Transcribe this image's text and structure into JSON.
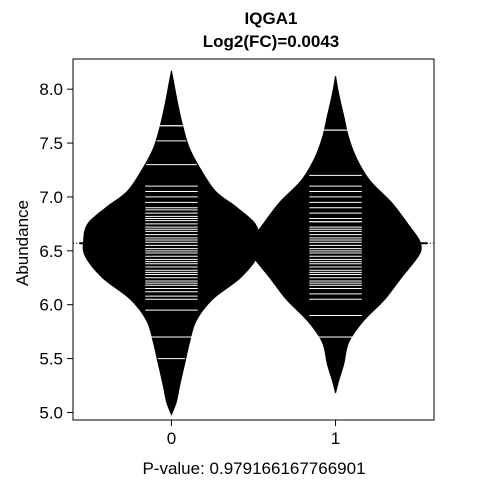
{
  "chart_data": {
    "type": "beanplot",
    "title": "IQGA1",
    "subtitle": "Log2(FC)=0.0043",
    "xlabel": "P-value: 0.979166167766901",
    "ylabel": "Abundance",
    "categories": [
      "0",
      "1"
    ],
    "ylim": [
      4.93,
      8.28
    ],
    "xlim": [
      -0.6,
      1.6
    ],
    "yticks": [
      5.0,
      5.5,
      6.0,
      6.5,
      7.0,
      7.5,
      8.0
    ],
    "ytick_labels": [
      "5.0",
      "5.5",
      "6.0",
      "6.5",
      "7.0",
      "7.5",
      "8.0"
    ],
    "overall_mean": 6.57,
    "groups": [
      {
        "name": "0",
        "mean": 6.57,
        "density": [
          {
            "y": 4.98,
            "w": 0.0
          },
          {
            "y": 5.1,
            "w": 0.03
          },
          {
            "y": 5.25,
            "w": 0.05
          },
          {
            "y": 5.45,
            "w": 0.08
          },
          {
            "y": 5.65,
            "w": 0.11
          },
          {
            "y": 5.85,
            "w": 0.15
          },
          {
            "y": 6.05,
            "w": 0.25
          },
          {
            "y": 6.25,
            "w": 0.42
          },
          {
            "y": 6.45,
            "w": 0.525
          },
          {
            "y": 6.6,
            "w": 0.535
          },
          {
            "y": 6.75,
            "w": 0.51
          },
          {
            "y": 6.9,
            "w": 0.4
          },
          {
            "y": 7.05,
            "w": 0.27
          },
          {
            "y": 7.25,
            "w": 0.18
          },
          {
            "y": 7.45,
            "w": 0.11
          },
          {
            "y": 7.65,
            "w": 0.07
          },
          {
            "y": 7.85,
            "w": 0.04
          },
          {
            "y": 8.05,
            "w": 0.015
          },
          {
            "y": 8.17,
            "w": 0.0
          }
        ],
        "observations": [
          5.5,
          5.7,
          5.95,
          6.05,
          6.08,
          6.12,
          6.15,
          6.18,
          6.2,
          6.22,
          6.25,
          6.28,
          6.3,
          6.32,
          6.35,
          6.38,
          6.4,
          6.42,
          6.45,
          6.48,
          6.5,
          6.52,
          6.55,
          6.58,
          6.6,
          6.62,
          6.65,
          6.68,
          6.7,
          6.72,
          6.75,
          6.78,
          6.8,
          6.82,
          6.85,
          6.88,
          6.9,
          6.95,
          7.0,
          7.05,
          7.1,
          7.3,
          7.52,
          7.66
        ],
        "long_marks": [
          5.7,
          7.66
        ]
      },
      {
        "name": "1",
        "mean": 6.57,
        "density": [
          {
            "y": 5.18,
            "w": 0.0
          },
          {
            "y": 5.3,
            "w": 0.02
          },
          {
            "y": 5.45,
            "w": 0.05
          },
          {
            "y": 5.65,
            "w": 0.08
          },
          {
            "y": 5.85,
            "w": 0.17
          },
          {
            "y": 6.05,
            "w": 0.3
          },
          {
            "y": 6.25,
            "w": 0.4
          },
          {
            "y": 6.4,
            "w": 0.48
          },
          {
            "y": 6.5,
            "w": 0.52
          },
          {
            "y": 6.6,
            "w": 0.51
          },
          {
            "y": 6.75,
            "w": 0.44
          },
          {
            "y": 6.95,
            "w": 0.34
          },
          {
            "y": 7.15,
            "w": 0.21
          },
          {
            "y": 7.35,
            "w": 0.13
          },
          {
            "y": 7.55,
            "w": 0.08
          },
          {
            "y": 7.75,
            "w": 0.05
          },
          {
            "y": 7.95,
            "w": 0.02
          },
          {
            "y": 8.12,
            "w": 0.0
          }
        ],
        "observations": [
          5.7,
          5.9,
          6.05,
          6.1,
          6.15,
          6.18,
          6.2,
          6.22,
          6.25,
          6.28,
          6.3,
          6.32,
          6.35,
          6.38,
          6.4,
          6.42,
          6.45,
          6.48,
          6.5,
          6.52,
          6.55,
          6.58,
          6.6,
          6.62,
          6.65,
          6.68,
          6.7,
          6.72,
          6.77,
          6.8,
          6.85,
          6.9,
          6.95,
          7.0,
          7.05,
          7.1,
          7.2,
          7.62
        ],
        "long_marks": [
          5.7,
          6.77,
          7.62
        ]
      }
    ]
  }
}
